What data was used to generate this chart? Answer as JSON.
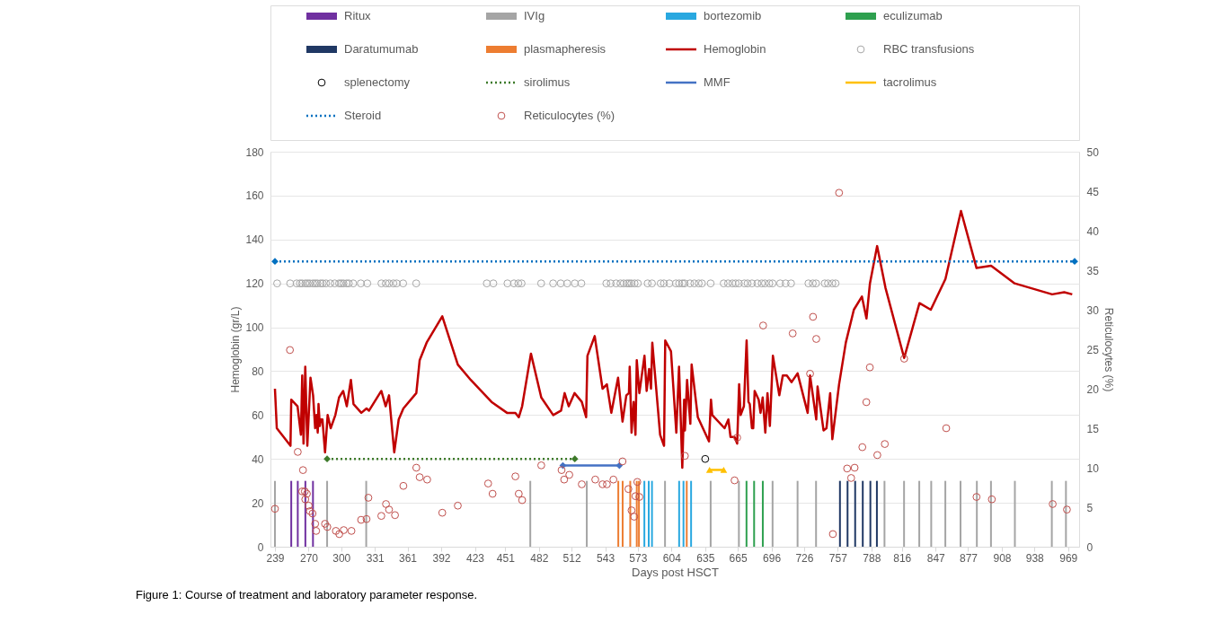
{
  "chart_data": {
    "type": "line",
    "xlabel": "Days post HSCT",
    "ylabel": "Hemoglobin (gr/L)",
    "y2label": "Reticulocytes (%)",
    "annotations": [
      "Figure 1: Course of treatment and laboratory parameter response."
    ],
    "xlim": [
      239,
      975
    ],
    "xticks": [
      239,
      270,
      300,
      331,
      361,
      392,
      423,
      451,
      482,
      512,
      543,
      573,
      604,
      635,
      665,
      696,
      726,
      757,
      788,
      816,
      847,
      877,
      908,
      938,
      969
    ],
    "ylim": [
      0,
      180
    ],
    "yticks": [
      0,
      20,
      40,
      60,
      80,
      100,
      120,
      140,
      160,
      180
    ],
    "y2lim": [
      0,
      50
    ],
    "y2ticks": [
      0,
      5,
      10,
      15,
      20,
      25,
      30,
      35,
      40,
      45,
      50
    ],
    "grid": "y",
    "legend": "top",
    "series": [
      {
        "name": "Ritux",
        "type": "bar",
        "color": "#7030a0",
        "x": [
          254,
          260,
          267,
          274
        ],
        "values": [
          30,
          30,
          30,
          30
        ]
      },
      {
        "name": "IVIg",
        "type": "bar",
        "color": "#a5a5a5",
        "x": [
          239,
          287,
          323,
          474,
          526,
          598,
          640,
          666,
          697,
          720,
          737,
          800,
          818,
          832,
          843,
          856,
          870,
          885,
          898,
          920,
          954,
          967
        ],
        "values": [
          30,
          30,
          30,
          30,
          30,
          30,
          30,
          30,
          30,
          30,
          30,
          30,
          30,
          30,
          30,
          30,
          30,
          30,
          30,
          30,
          30,
          30
        ]
      },
      {
        "name": "bortezomib",
        "type": "bar",
        "color": "#29a8e0",
        "x": [
          579,
          583,
          586,
          611,
          615,
          622
        ],
        "values": [
          30,
          30,
          30,
          30,
          30,
          30
        ]
      },
      {
        "name": "eculizumab",
        "type": "bar",
        "color": "#2ea04f",
        "x": [
          673,
          680,
          688
        ],
        "values": [
          30,
          30,
          30
        ]
      },
      {
        "name": "Daratumumab",
        "type": "bar",
        "color": "#203864",
        "x": [
          759,
          766,
          773,
          780,
          787,
          793
        ],
        "values": [
          30,
          30,
          30,
          30,
          30,
          30
        ]
      },
      {
        "name": "plasmapheresis",
        "type": "bar",
        "color": "#ed7d31",
        "x": [
          555,
          559,
          566,
          572,
          574,
          618
        ],
        "values": [
          30,
          30,
          30,
          30,
          30,
          30
        ]
      },
      {
        "name": "Hemoglobin",
        "color": "#c00000",
        "line_style": "solid",
        "x": [
          239.0,
          240.7,
          253.3,
          254.0,
          259.8,
          262.9,
          264.1,
          265.3,
          266.9,
          268.8,
          271.7,
          274.1,
          276.0,
          277.2,
          278.4,
          279.1,
          280.3,
          281.3,
          282.7,
          285.1,
          287.5,
          290.3,
          294.6,
          298.0,
          301.8,
          305.1,
          308.9,
          311.3,
          318.5,
          323.3,
          325.6,
          336.9,
          340.9,
          344.0,
          348.8,
          352.9,
          357.2,
          369.1,
          372.2,
          378.6,
          393.0,
          407.3,
          419.2,
          438.3,
          452.6,
          460.3,
          463.4,
          466.5,
          474.6,
          484.1,
          495.1,
          502.3,
          505.6,
          509.4,
          514.7,
          521.4,
          525.4,
          526.6,
          533.3,
          540.5,
          544.5,
          548.6,
          554.8,
          558.9,
          562.4,
          564.8,
          565.5,
          567.2,
          569.1,
          570.8,
          572.0,
          574.4,
          579.1,
          581.1,
          583.4,
          585.1,
          586.3,
          593.5,
          597.1,
          598.2,
          603.5,
          608.4,
          610.9,
          613.9,
          615.6,
          616.3,
          618.3,
          621.3,
          622.5,
          628.2,
          638.5,
          640.3,
          641.5,
          652.8,
          656.3,
          658.3,
          662.0,
          664.4,
          666.2,
          667.6,
          670.6,
          673.1,
          674.8,
          676.0,
          678.0,
          679.2,
          680.5,
          684.2,
          685.9,
          687.9,
          690.3,
          692.3,
          694.5,
          697.3,
          703.2,
          706.4,
          710.1,
          714.5,
          720.0,
          729.3,
          731.5,
          737.2,
          738.4,
          743.9,
          746.6,
          750.0,
          752.0,
          758.2,
          764.4,
          771.8,
          779.2,
          783.4,
          786.6,
          793.2,
          800.9,
          818.1,
          832.2,
          842.6,
          856.1,
          870.4,
          884.7,
          898.1,
          919.8,
          954.3,
          965.4,
          972.8
        ],
        "values": [
          72,
          54,
          46,
          67,
          64,
          51,
          78,
          47,
          82,
          46,
          77,
          69,
          54,
          60,
          52,
          65,
          55,
          58,
          58,
          43,
          60,
          54,
          60,
          68,
          71,
          64,
          76,
          65,
          61,
          63,
          62,
          71,
          64,
          69,
          43,
          58,
          63,
          70,
          85,
          93,
          105,
          83,
          76,
          66,
          61,
          61,
          59,
          64,
          88,
          68,
          60,
          62,
          70,
          64,
          70,
          66,
          59,
          87,
          96,
          72,
          74,
          61,
          77,
          57,
          69,
          70,
          82,
          52,
          66,
          51,
          85,
          70,
          87,
          71,
          81,
          72,
          93,
          51,
          46,
          94,
          89,
          52,
          82,
          36,
          67,
          53,
          76,
          56,
          83,
          59,
          48,
          67,
          60,
          54,
          58,
          50,
          50,
          47,
          74,
          60,
          64,
          94,
          66,
          65,
          54,
          54,
          71,
          67,
          61,
          68,
          52,
          70,
          55,
          87,
          69,
          78,
          78,
          75,
          79,
          61,
          78,
          58,
          73,
          53,
          54,
          70,
          49,
          74,
          93,
          108,
          114,
          104,
          120,
          137,
          118,
          86,
          111,
          108,
          122,
          153,
          127,
          128,
          120,
          115,
          116,
          115
        ]
      },
      {
        "name": "RBC transfusions",
        "type": "scatter",
        "color": "#a6a6a6",
        "marker": "circle",
        "x": [
          241,
          253,
          259,
          262,
          264,
          267,
          269,
          271,
          274,
          276,
          278,
          281,
          283,
          286,
          290,
          294,
          298,
          300,
          302,
          305,
          307,
          311,
          318,
          324,
          337,
          341,
          344,
          348,
          351,
          357,
          369,
          434,
          440,
          453,
          459,
          463,
          466,
          484,
          495,
          502,
          508,
          515,
          521,
          544,
          548,
          553,
          557,
          560,
          563,
          565,
          567,
          570,
          573,
          582,
          586,
          594,
          597,
          602,
          608,
          611,
          614,
          616,
          621,
          625,
          629,
          632,
          640,
          652,
          656,
          660,
          663,
          666,
          671,
          674,
          678,
          683,
          687,
          690,
          694,
          697,
          704,
          709,
          714,
          730,
          734,
          737,
          745,
          748,
          752,
          755
        ],
        "values": [
          120,
          120,
          120,
          120,
          120,
          120,
          120,
          120,
          120,
          120,
          120,
          120,
          120,
          120,
          120,
          120,
          120,
          120,
          120,
          120,
          120,
          120,
          120,
          120,
          120,
          120,
          120,
          120,
          120,
          120,
          120,
          120,
          120,
          120,
          120,
          120,
          120,
          120,
          120,
          120,
          120,
          120,
          120,
          120,
          120,
          120,
          120,
          120,
          120,
          120,
          120,
          120,
          120,
          120,
          120,
          120,
          120,
          120,
          120,
          120,
          120,
          120,
          120,
          120,
          120,
          120,
          120,
          120,
          120,
          120,
          120,
          120,
          120,
          120,
          120,
          120,
          120,
          120,
          120,
          120,
          120,
          120,
          120,
          120,
          120,
          120,
          120,
          120,
          120,
          120
        ]
      },
      {
        "name": "splenectomy",
        "type": "scatter",
        "color": "#000000",
        "marker": "circle",
        "x": [
          635
        ],
        "values": [
          40
        ]
      },
      {
        "name": "sirolimus",
        "type": "line",
        "color": "#3d7a2a",
        "line_style": "dotted",
        "marker": "diamond",
        "x": [
          287,
          515
        ],
        "values": [
          40,
          40
        ]
      },
      {
        "name": "MMF",
        "type": "line",
        "color": "#4472c4",
        "line_style": "solid",
        "marker": "diamond",
        "x": [
          504,
          556
        ],
        "values": [
          37,
          37
        ]
      },
      {
        "name": "tacrolimus",
        "type": "line",
        "color": "#ffc000",
        "line_style": "solid",
        "marker": "triangle",
        "x": [
          639,
          652
        ],
        "values": [
          35,
          35
        ]
      },
      {
        "name": "Steroid",
        "type": "line",
        "color": "#0070c0",
        "line_style": "dotted",
        "marker": "diamond",
        "x": [
          239,
          975
        ],
        "values": [
          130,
          130
        ]
      },
      {
        "name": "Reticulocytes (%)",
        "type": "scatter",
        "color": "#c0504d",
        "marker": "circle",
        "axis": "y2",
        "x": [
          239.0,
          252.8,
          260.0,
          264.1,
          264.8,
          266.5,
          266.9,
          268.4,
          270.0,
          271.2,
          273.6,
          276.0,
          276.9,
          285.1,
          287.2,
          295.1,
          298.2,
          302.3,
          309.4,
          318.3,
          323.3,
          325.0,
          336.9,
          341.2,
          344.0,
          349.5,
          357.2,
          369.1,
          372.2,
          379.1,
          393.0,
          407.3,
          435.2,
          439.3,
          460.3,
          463.4,
          466.5,
          484.1,
          502.8,
          505.2,
          509.9,
          521.4,
          533.8,
          540.5,
          544.5,
          550.5,
          558.9,
          564.3,
          567.2,
          569.6,
          570.8,
          572.5,
          574.4,
          616.3,
          662.0,
          664.4,
          688.3,
          715.5,
          731.5,
          734.2,
          737.2,
          752.5,
          758.2,
          765.6,
          769.3,
          772.5,
          779.6,
          783.3,
          786.5,
          793.4,
          800.3,
          818.1,
          856.8,
          884.7,
          898.8,
          954.8,
          967.9
        ],
        "values": [
          4.8,
          24.9,
          12.0,
          7.0,
          9.7,
          7.0,
          6.0,
          6.7,
          5.2,
          4.5,
          4.2,
          2.9,
          2.0,
          2.9,
          2.5,
          2.0,
          1.6,
          2.1,
          2.0,
          3.4,
          3.5,
          6.2,
          3.9,
          5.4,
          4.7,
          4.0,
          7.7,
          10.0,
          8.8,
          8.5,
          4.3,
          5.2,
          8.0,
          6.7,
          8.9,
          6.7,
          5.9,
          10.3,
          9.7,
          8.5,
          9.1,
          7.9,
          8.5,
          7.9,
          7.9,
          8.5,
          10.8,
          7.3,
          4.6,
          3.8,
          6.4,
          8.2,
          6.3,
          11.5,
          8.4,
          13.8,
          28.0,
          27.0,
          21.9,
          29.1,
          26.3,
          1.6,
          44.8,
          9.9,
          8.7,
          10.0,
          12.6,
          18.3,
          22.7,
          11.6,
          13.0,
          23.8,
          15.0,
          6.3,
          6.0,
          5.4,
          4.7
        ]
      }
    ]
  }
}
